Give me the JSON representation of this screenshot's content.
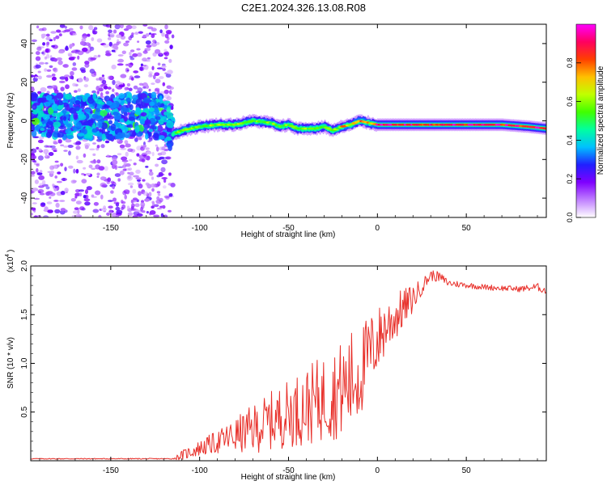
{
  "title": "C2E1.2024.326.13.08.R08",
  "chart_data": [
    {
      "type": "heatmap",
      "title": "C2E1.2024.326.13.08.R08",
      "xlabel": "Height of straight line (km)",
      "ylabel": "Frequency (Hz)",
      "xlim": [
        -195,
        95
      ],
      "ylim": [
        -50,
        50
      ],
      "xticks": [
        -150,
        -100,
        -50,
        0,
        50
      ],
      "yticks": [
        -40,
        -20,
        0,
        20,
        40
      ],
      "colorbar": {
        "label": "Normalized spectral amplitude",
        "range": [
          0,
          1
        ],
        "ticks": [
          "0.0",
          "0.2",
          "0.4",
          "0.6",
          "0.8"
        ],
        "colors": [
          "#ffffff",
          "#c080ff",
          "#7f00ff",
          "#2020ff",
          "#00c0ff",
          "#00ffa0",
          "#40ff00",
          "#c0ff00",
          "#ffc000",
          "#ff4000",
          "#ff0060",
          "#ff00ff"
        ]
      },
      "ridge": {
        "height_km": [
          -195,
          -180,
          -165,
          -150,
          -135,
          -120,
          -115,
          -110,
          -100,
          -90,
          -80,
          -70,
          -60,
          -55,
          -50,
          -45,
          -40,
          -35,
          -30,
          -25,
          -20,
          -15,
          -10,
          -5,
          0,
          10,
          20,
          30,
          50,
          70,
          85,
          95
        ],
        "frequency_hz": [
          3,
          3,
          2,
          2,
          3,
          2,
          -7,
          -5,
          -3,
          -2,
          -2,
          0,
          -1,
          -3,
          -2,
          -4,
          -4,
          -4,
          -3,
          -5,
          -3,
          -2,
          0,
          -1,
          -2,
          -2,
          -2,
          -2,
          -2,
          -2,
          -3,
          -4
        ]
      },
      "noisy_region_km": [
        -195,
        -115
      ]
    },
    {
      "type": "line",
      "xlabel": "Height of straight line (km)",
      "ylabel": "SNR (10 * v/v)",
      "scale_note": "(x10",
      "scale_exponent": "4",
      "color": "#e8302a",
      "xlim": [
        -195,
        95
      ],
      "ylim": [
        0,
        2.0
      ],
      "xticks": [
        -150,
        -100,
        -50,
        0,
        50
      ],
      "yticks": [
        "0.5",
        "1.0",
        "1.5",
        "2.0"
      ],
      "x": [
        -195,
        -150,
        -115,
        -110,
        -100,
        -90,
        -80,
        -70,
        -60,
        -50,
        -40,
        -30,
        -20,
        -15,
        -10,
        -5,
        0,
        5,
        10,
        15,
        20,
        25,
        30,
        35,
        40,
        50,
        60,
        70,
        80,
        90,
        95
      ],
      "y": [
        0.02,
        0.02,
        0.02,
        0.05,
        0.12,
        0.18,
        0.24,
        0.3,
        0.38,
        0.45,
        0.52,
        0.6,
        0.68,
        0.75,
        0.85,
        1.05,
        1.2,
        1.35,
        1.45,
        1.55,
        1.65,
        1.78,
        1.9,
        1.88,
        1.82,
        1.8,
        1.78,
        1.77,
        1.76,
        1.78,
        1.74
      ],
      "spread": [
        0.005,
        0.005,
        0.005,
        0.05,
        0.08,
        0.12,
        0.18,
        0.25,
        0.3,
        0.35,
        0.4,
        0.45,
        0.5,
        0.55,
        0.5,
        0.4,
        0.35,
        0.3,
        0.25,
        0.2,
        0.15,
        0.08,
        0.06,
        0.05,
        0.04,
        0.03,
        0.03,
        0.03,
        0.03,
        0.04,
        0.04
      ]
    }
  ]
}
